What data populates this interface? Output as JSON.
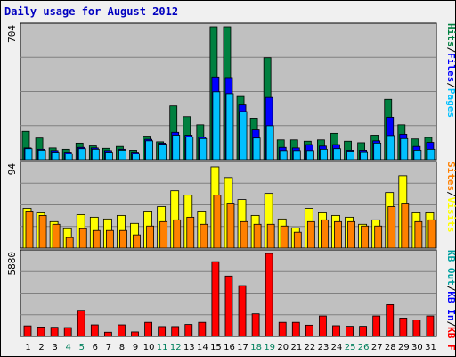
{
  "title": "Daily usage for August 2012",
  "colors": {
    "plot_bg": "#c0c0c0",
    "grid": "#808080",
    "hits": "#008040",
    "files": "#0000ff",
    "pages": "#00c0ff",
    "visits": "#ffff00",
    "sites": "#ff8000",
    "kbout": "#00a0a0",
    "kbin": "#0000ff",
    "kbf": "#ff0000",
    "weekday_label": "#000000",
    "weekend_label": "#00805c"
  },
  "chart_data": [
    {
      "type": "bar",
      "ylim": [
        0,
        704
      ],
      "ylabel_max": "704",
      "legend": [
        {
          "text": "Pages",
          "color": "#00c0ff"
        },
        {
          "text": "/",
          "color": "#000000"
        },
        {
          "text": "Files",
          "color": "#0000ff"
        },
        {
          "text": "/",
          "color": "#000000"
        },
        {
          "text": "Hits",
          "color": "#008040"
        }
      ],
      "categories": [
        "1",
        "2",
        "3",
        "4",
        "5",
        "6",
        "7",
        "8",
        "9",
        "10",
        "11",
        "12",
        "13",
        "14",
        "15",
        "16",
        "17",
        "18",
        "19",
        "20",
        "21",
        "22",
        "23",
        "24",
        "25",
        "26",
        "27",
        "28",
        "29",
        "30",
        "31"
      ],
      "series": [
        {
          "name": "Hits",
          "values": [
            150,
            115,
            62,
            55,
            88,
            73,
            60,
            70,
            50,
            125,
            95,
            285,
            228,
            185,
            704,
            704,
            335,
            220,
            540,
            105,
            105,
            98,
            105,
            140,
            98,
            90,
            130,
            320,
            185,
            110,
            118
          ]
        },
        {
          "name": "Files",
          "values": [
            62,
            55,
            48,
            40,
            65,
            62,
            48,
            55,
            40,
            108,
            88,
            145,
            130,
            120,
            438,
            435,
            290,
            158,
            330,
            65,
            62,
            80,
            72,
            80,
            50,
            50,
            100,
            225,
            135,
            70,
            92
          ]
        },
        {
          "name": "Pages",
          "values": [
            58,
            50,
            40,
            32,
            58,
            55,
            40,
            50,
            33,
            100,
            82,
            130,
            120,
            112,
            360,
            350,
            255,
            115,
            180,
            48,
            48,
            48,
            55,
            58,
            45,
            42,
            88,
            128,
            112,
            50,
            55
          ]
        }
      ]
    },
    {
      "type": "bar",
      "ylim": [
        0,
        94
      ],
      "ylabel_max": "94",
      "legend": [
        {
          "text": "Visits",
          "color": "#ffff00"
        },
        {
          "text": "/",
          "color": "#000000"
        },
        {
          "text": "Sites",
          "color": "#ff8000"
        }
      ],
      "categories": [
        "1",
        "2",
        "3",
        "4",
        "5",
        "6",
        "7",
        "8",
        "9",
        "10",
        "11",
        "12",
        "13",
        "14",
        "15",
        "16",
        "17",
        "18",
        "19",
        "20",
        "21",
        "22",
        "23",
        "24",
        "25",
        "26",
        "27",
        "28",
        "29",
        "30",
        "31"
      ],
      "series": [
        {
          "name": "Visits",
          "values": [
            45,
            40,
            30,
            22,
            38,
            35,
            33,
            37,
            28,
            42,
            47,
            65,
            60,
            42,
            92,
            80,
            55,
            37,
            62,
            33,
            23,
            45,
            40,
            37,
            35,
            27,
            32,
            63,
            82,
            40,
            40
          ]
        },
        {
          "name": "Sites",
          "values": [
            42,
            37,
            27,
            12,
            22,
            20,
            20,
            20,
            15,
            25,
            30,
            32,
            35,
            27,
            60,
            50,
            30,
            27,
            27,
            25,
            18,
            30,
            32,
            30,
            30,
            25,
            25,
            47,
            50,
            30,
            32
          ]
        }
      ]
    },
    {
      "type": "bar",
      "ylim": [
        0,
        5880
      ],
      "ylabel_max": "5880",
      "legend": [
        {
          "text": "KB F",
          "color": "#ff0000"
        },
        {
          "text": "/",
          "color": "#000000"
        },
        {
          "text": "KB In",
          "color": "#0000ff"
        },
        {
          "text": "/",
          "color": "#000000"
        },
        {
          "text": "KB Out",
          "color": "#00a0a0"
        }
      ],
      "categories": [
        "1",
        "2",
        "3",
        "4",
        "5",
        "6",
        "7",
        "8",
        "9",
        "10",
        "11",
        "12",
        "13",
        "14",
        "15",
        "16",
        "17",
        "18",
        "19",
        "20",
        "21",
        "22",
        "23",
        "24",
        "25",
        "26",
        "27",
        "28",
        "29",
        "30",
        "31"
      ],
      "series": [
        {
          "name": "KB F",
          "values": [
            750,
            670,
            650,
            630,
            1850,
            820,
            300,
            820,
            320,
            1000,
            700,
            700,
            850,
            1000,
            5300,
            4280,
            3600,
            1600,
            5880,
            1000,
            1000,
            800,
            1450,
            760,
            720,
            720,
            1450,
            2250,
            1300,
            1170,
            1450
          ]
        }
      ]
    }
  ],
  "x_axis": {
    "days": [
      "1",
      "2",
      "3",
      "4",
      "5",
      "6",
      "7",
      "8",
      "9",
      "10",
      "11",
      "12",
      "13",
      "14",
      "15",
      "16",
      "17",
      "18",
      "19",
      "20",
      "21",
      "22",
      "23",
      "24",
      "25",
      "26",
      "27",
      "28",
      "29",
      "30",
      "31"
    ],
    "weekend": [
      4,
      5,
      11,
      12,
      18,
      19,
      25,
      26
    ]
  }
}
